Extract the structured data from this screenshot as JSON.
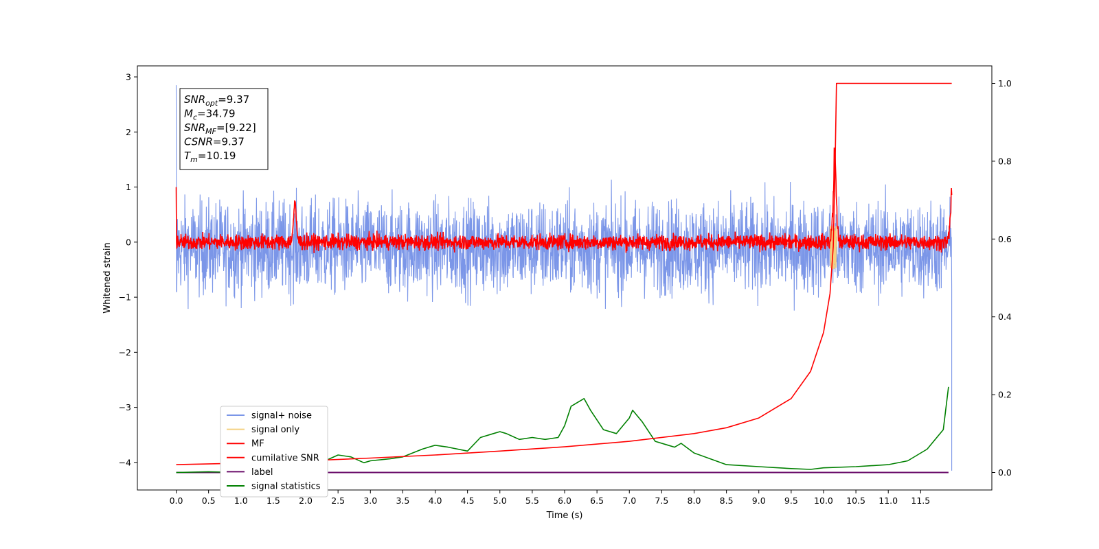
{
  "chart_data": {
    "type": "line",
    "xlabel": "Time (s)",
    "ylabel": "Whitened strain",
    "xlim": [
      -0.6,
      12.6
    ],
    "ylim_left": [
      -4.5,
      3.2
    ],
    "ylim_right": [
      -0.045,
      1.045
    ],
    "x_ticks": [
      0.0,
      0.5,
      1.0,
      1.5,
      2.0,
      2.5,
      3.0,
      3.5,
      4.0,
      4.5,
      5.0,
      5.5,
      6.0,
      6.5,
      7.0,
      7.5,
      8.0,
      8.5,
      9.0,
      9.5,
      10.0,
      10.5,
      11.0,
      11.5
    ],
    "x_tick_labels": [
      "0.0",
      "0.5",
      "1.0",
      "1.5",
      "2.0",
      "2.5",
      "3.0",
      "3.5",
      "4.0",
      "4.5",
      "5.0",
      "5.5",
      "6.0",
      "6.5",
      "7.0",
      "7.5",
      "8.0",
      "8.5",
      "9.0",
      "9.5",
      "10.0",
      "10.5",
      "11.0",
      "11.5"
    ],
    "y_left_ticks": [
      3,
      2,
      1,
      0,
      -1,
      -2,
      -3,
      -4
    ],
    "y_left_tick_labels": [
      "3",
      "2",
      "1",
      "0",
      "−1",
      "−2",
      "−3",
      "−4"
    ],
    "y_right_ticks": [
      1.0,
      0.8,
      0.6,
      0.4,
      0.2,
      0.0
    ],
    "y_right_tick_labels": [
      "1.0",
      "0.8",
      "0.6",
      "0.4",
      "0.2",
      "0.0"
    ],
    "annotation_box": [
      {
        "symbol": "SNR",
        "sub": "opt",
        "value": "=9.37"
      },
      {
        "symbol": "M",
        "sub": "c",
        "value": "=34.79"
      },
      {
        "symbol": "SNR",
        "sub": "MF",
        "value": "=[9.22]"
      },
      {
        "symbol": "CSNR",
        "sub": "",
        "value": "=9.37"
      },
      {
        "symbol": "T",
        "sub": "m",
        "value": "=10.19"
      }
    ],
    "legend": {
      "placement": "lower-left",
      "entries": [
        {
          "label": "signal+ noise",
          "color": "#7b96e8"
        },
        {
          "label": "signal only",
          "color": "#f5d080"
        },
        {
          "label": "MF",
          "color": "#ff0000"
        },
        {
          "label": "cumilative SNR",
          "color": "#ff0000"
        },
        {
          "label": "label",
          "color": "#6a0d6a"
        },
        {
          "label": "signal statistics",
          "color": "#008000"
        }
      ]
    },
    "series": [
      {
        "name": "signal+ noise",
        "axis": "left",
        "color": "#7b96e8",
        "x_range": [
          0,
          11.98
        ],
        "mean": -0.1,
        "envelope": [
          -1.6,
          1.55
        ],
        "end_value": -4.15
      },
      {
        "name": "signal only",
        "axis": "left",
        "color": "#f5d080",
        "x_range": [
          10.1,
          10.2
        ],
        "envelope": [
          -0.5,
          0.3
        ]
      },
      {
        "name": "MF",
        "axis": "left",
        "color": "#ff0000",
        "x_range": [
          0,
          11.98
        ],
        "mean": 0.0,
        "envelope": [
          -0.15,
          0.35
        ],
        "spikes": [
          {
            "x": 1.83,
            "y": 0.68
          },
          {
            "x": 10.17,
            "y": 1.65
          },
          {
            "x": 11.98,
            "y": 0.95
          }
        ]
      },
      {
        "name": "cumilative SNR",
        "axis": "right",
        "color": "#ff0000",
        "x": [
          0.0,
          1.0,
          2.0,
          3.0,
          4.0,
          5.0,
          6.0,
          7.0,
          8.0,
          8.5,
          9.0,
          9.5,
          9.8,
          10.0,
          10.1,
          10.15,
          10.18,
          10.2,
          10.3,
          11.0,
          11.98
        ],
        "values": [
          0.02,
          0.024,
          0.03,
          0.037,
          0.045,
          0.055,
          0.066,
          0.08,
          0.1,
          0.115,
          0.14,
          0.19,
          0.26,
          0.36,
          0.46,
          0.58,
          0.8,
          1.0,
          1.0,
          1.0,
          1.0
        ]
      },
      {
        "name": "label",
        "axis": "right",
        "color": "#6a0d6a",
        "x": [
          0.0,
          11.93
        ],
        "values": [
          0.0,
          0.0
        ]
      },
      {
        "name": "signal statistics",
        "axis": "right",
        "color": "#008000",
        "x": [
          0.0,
          0.5,
          1.0,
          1.5,
          2.0,
          2.3,
          2.5,
          2.7,
          2.9,
          3.0,
          3.3,
          3.5,
          3.8,
          3.9,
          4.0,
          4.2,
          4.5,
          4.7,
          4.9,
          5.0,
          5.1,
          5.3,
          5.5,
          5.7,
          5.9,
          6.0,
          6.1,
          6.2,
          6.3,
          6.4,
          6.6,
          6.8,
          6.9,
          7.0,
          7.05,
          7.2,
          7.4,
          7.6,
          7.7,
          7.8,
          8.0,
          8.5,
          9.0,
          9.5,
          9.8,
          10.0,
          10.5,
          11.0,
          11.3,
          11.6,
          11.85,
          11.93
        ],
        "values": [
          0.0,
          0.002,
          0.0,
          0.0,
          0.02,
          0.03,
          0.045,
          0.04,
          0.025,
          0.03,
          0.035,
          0.04,
          0.06,
          0.065,
          0.07,
          0.065,
          0.055,
          0.09,
          0.1,
          0.105,
          0.1,
          0.085,
          0.09,
          0.085,
          0.09,
          0.12,
          0.17,
          0.18,
          0.19,
          0.16,
          0.11,
          0.1,
          0.12,
          0.14,
          0.16,
          0.13,
          0.08,
          0.07,
          0.065,
          0.075,
          0.05,
          0.02,
          0.015,
          0.01,
          0.008,
          0.012,
          0.015,
          0.02,
          0.03,
          0.06,
          0.11,
          0.22
        ]
      }
    ]
  }
}
